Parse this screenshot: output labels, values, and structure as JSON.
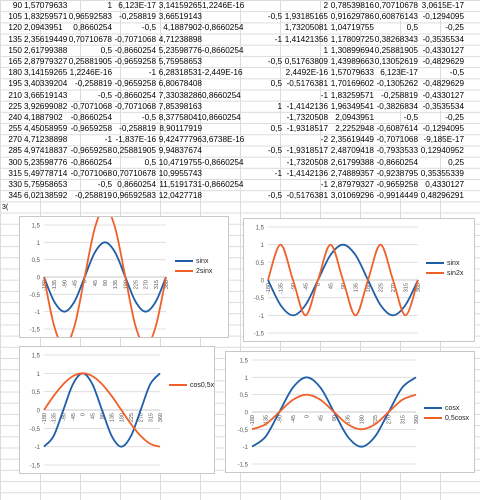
{
  "table": {
    "rows": [
      [
        "90",
        "1,57079633",
        "1",
        "6,123E-17",
        "3,14159265",
        "1,2246E-16",
        "",
        "2",
        "0,78539816",
        "0,70710678",
        "3,0615E-17"
      ],
      [
        "105",
        "1,83259571",
        "0,96592583",
        "-0,258819",
        "3,66519143",
        "",
        "-0,5",
        "1,93185165",
        "0,91629786",
        "0,60876143",
        "-0,1294095"
      ],
      [
        "120",
        "2,0943951",
        "0,8660254",
        "-0,5",
        "4,1887902",
        "-0,8660254",
        "",
        "1,73205081",
        "1,04719755",
        "0,5",
        "-0,25"
      ],
      [
        "135",
        "2,35619449",
        "0,70710678",
        "-0,7071068",
        "4,71238898",
        "",
        "-1",
        "1,41421356",
        "1,17809725",
        "0,38268343",
        "-0,3535534"
      ],
      [
        "150",
        "2,61799388",
        "0,5",
        "-0,8660254",
        "5,23598776",
        "-0,8660254",
        "",
        "1",
        "1,30899694",
        "0,25881905",
        "-0,4330127"
      ],
      [
        "165",
        "2,87979327",
        "0,25881905",
        "-0,9659258",
        "5,75958653",
        "",
        "-0,5",
        "0,51763809",
        "1,43989663",
        "0,13052619",
        "-0,4829629"
      ],
      [
        "180",
        "3,14159265",
        "1,2246E-16",
        "-1",
        "6,28318531",
        "-2,449E-16",
        "",
        "2,4492E-16",
        "1,57079633",
        "6,123E-17",
        "-0,5"
      ],
      [
        "195",
        "3,40339204",
        "-0,258819",
        "-0,9659258",
        "6,80678408",
        "",
        "0,5",
        "-0,5176381",
        "1,70169602",
        "-0,1305262",
        "-0,4829629"
      ],
      [
        "210",
        "3,66519143",
        "-0,5",
        "-0,8660254",
        "7,33038286",
        "0,8660254",
        "",
        "-1",
        "1,83259571",
        "-0,258819",
        "-0,4330127"
      ],
      [
        "225",
        "3,92699082",
        "-0,7071068",
        "-0,7071068",
        "7,85398163",
        "",
        "1",
        "-1,4142136",
        "1,96349541",
        "-0,3826834",
        "-0,3535534"
      ],
      [
        "240",
        "4,1887902",
        "-0,8660254",
        "-0,5",
        "8,37758041",
        "0,8660254",
        "",
        "-1,7320508",
        "2,0943951",
        "-0,5",
        "-0,25"
      ],
      [
        "255",
        "4,45058959",
        "-0,9659258",
        "-0,258819",
        "8,90117919",
        "",
        "0,5",
        "-1,9318517",
        "2,2252948",
        "-0,6087614",
        "-0,1294095"
      ],
      [
        "270",
        "4,71238898",
        "-1",
        "-1,837E-16",
        "9,42477796",
        "3,6738E-16",
        "",
        "-2",
        "2,35619449",
        "-0,7071068",
        "-9,185E-17"
      ],
      [
        "285",
        "4,97418837",
        "-0,9659258",
        "0,25881905",
        "9,94837674",
        "",
        "-0,5",
        "-1,9318517",
        "2,48709418",
        "-0,7933533",
        "0,12940952"
      ],
      [
        "300",
        "5,23598776",
        "-0,8660254",
        "0,5",
        "10,4719755",
        "-0,8660254",
        "",
        "-1,7320508",
        "2,61799388",
        "-0,8660254",
        "0,25"
      ],
      [
        "315",
        "5,49778714",
        "-0,7071068",
        "0,70710678",
        "10,9955743",
        "",
        "-1",
        "-1,4142136",
        "2,74889357",
        "-0,9238795",
        "0,35355339"
      ],
      [
        "330",
        "5,75958653",
        "-0,5",
        "0,8660254",
        "11,5191731",
        "-0,8660254",
        "",
        "-1",
        "2,87979327",
        "-0,9659258",
        "0,4330127"
      ],
      [
        "345",
        "6,02138592",
        "-0,258819",
        "0,96592583",
        "12,0427718",
        "",
        "-0,5",
        "-0,5176381",
        "3,01069296",
        "-0,9914449",
        "0,48296291"
      ]
    ],
    "fragment": "3("
  },
  "charts": [
    {
      "id": "chart1",
      "chart_data": {
        "type": "line",
        "x": [
          -180,
          -135,
          -90,
          -45,
          0,
          45,
          90,
          135,
          180,
          225,
          270,
          315,
          360
        ],
        "xticks": [
          "-180",
          "-135",
          "-90",
          "-45",
          "0",
          "45",
          "90",
          "135",
          "180",
          "225",
          "270",
          "315",
          "360"
        ],
        "yticks": [
          "1,5",
          "1",
          "0,5",
          "0",
          "-0,5",
          "-1",
          "-1,5"
        ],
        "ylim": [
          -1.5,
          1.5
        ],
        "series": [
          {
            "name": "sinx",
            "color": "#1f5ea8",
            "values": [
              0,
              -0.7071,
              -1,
              -0.7071,
              0,
              0.7071,
              1,
              0.7071,
              0,
              -0.7071,
              -1,
              -0.7071,
              0
            ]
          },
          {
            "name": "2sinx",
            "color": "#f0602a",
            "values": [
              0,
              -1.4142,
              -2,
              -1.4142,
              0,
              1.4142,
              2,
              1.4142,
              0,
              -1.4142,
              -2,
              -1.4142,
              0
            ]
          }
        ]
      }
    },
    {
      "id": "chart2",
      "chart_data": {
        "type": "line",
        "x": [
          -180,
          -135,
          -90,
          -45,
          0,
          45,
          90,
          135,
          180,
          225,
          270,
          315,
          360
        ],
        "xticks": [
          "-180",
          "-135",
          "-90",
          "-45",
          "0",
          "45",
          "90",
          "135",
          "180",
          "225",
          "270",
          "315",
          "360"
        ],
        "yticks": [
          "1,5",
          "1",
          "0,5",
          "0",
          "-0,5",
          "-1",
          "-1,5"
        ],
        "ylim": [
          -1.5,
          1.5
        ],
        "series": [
          {
            "name": "sinx",
            "color": "#1f5ea8",
            "values": [
              0,
              -0.7071,
              -1,
              -0.7071,
              0,
              0.7071,
              1,
              0.7071,
              0,
              -0.7071,
              -1,
              -0.7071,
              0
            ]
          },
          {
            "name": "sin2x",
            "color": "#f0602a",
            "values": [
              0,
              1,
              0,
              -1,
              0,
              1,
              0,
              -1,
              0,
              1,
              0,
              -1,
              0
            ]
          }
        ]
      }
    },
    {
      "id": "chart3",
      "chart_data": {
        "type": "line",
        "x": [
          -180,
          -135,
          -90,
          -45,
          0,
          45,
          90,
          135,
          180,
          225,
          270,
          315,
          360
        ],
        "xticks": [
          "-180",
          "-135",
          "-90",
          "-45",
          "0",
          "45",
          "90",
          "135",
          "180",
          "225",
          "270",
          "315",
          "360"
        ],
        "yticks": [
          "1,5",
          "1",
          "0,5",
          "0",
          "-0,5",
          "-1",
          "-1,5"
        ],
        "ylim": [
          -1.5,
          1.5
        ],
        "series": [
          {
            "name": "",
            "color": "#1f5ea8",
            "values": [
              -1,
              -0.7071,
              0,
              0.7071,
              1,
              0.7071,
              0,
              -0.7071,
              -1,
              -0.7071,
              0,
              0.7071,
              1
            ]
          },
          {
            "name": "cos0,5x",
            "color": "#f0602a",
            "values": [
              0,
              0.3827,
              0.7071,
              0.9239,
              1,
              0.9239,
              0.7071,
              0.3827,
              0,
              -0.3827,
              -0.7071,
              -0.9239,
              -1
            ]
          }
        ]
      }
    },
    {
      "id": "chart4",
      "chart_data": {
        "type": "line",
        "x": [
          -180,
          -135,
          -90,
          -45,
          0,
          45,
          90,
          135,
          180,
          225,
          270,
          315,
          360
        ],
        "xticks": [
          "-180",
          "-135",
          "-90",
          "-45",
          "0",
          "45",
          "90",
          "135",
          "180",
          "225",
          "270",
          "315",
          "360"
        ],
        "yticks": [
          "1,5",
          "1",
          "0,5",
          "0",
          "-0,5",
          "-1",
          "-1,5"
        ],
        "ylim": [
          -1.5,
          1.5
        ],
        "series": [
          {
            "name": "cosx",
            "color": "#1f5ea8",
            "values": [
              -1,
              -0.7071,
              0,
              0.7071,
              1,
              0.7071,
              0,
              -0.7071,
              -1,
              -0.7071,
              0,
              0.7071,
              1
            ]
          },
          {
            "name": "0,5cosx",
            "color": "#f0602a",
            "values": [
              -0.5,
              -0.3536,
              0,
              0.3536,
              0.5,
              0.3536,
              0,
              -0.3536,
              -0.5,
              -0.3536,
              0,
              0.3536,
              0.5
            ]
          }
        ]
      }
    }
  ]
}
